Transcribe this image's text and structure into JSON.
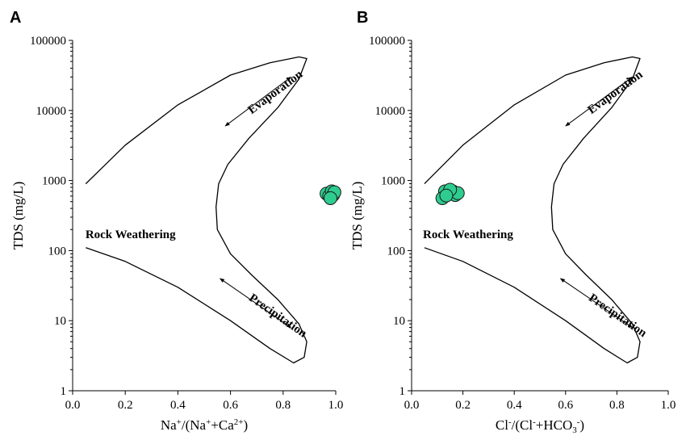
{
  "chart_data": [
    {
      "type": "scatter",
      "panel_label": "A",
      "ylabel": "TDS (mg/L)",
      "xlabel": {
        "parts": [
          {
            "t": "Na"
          },
          {
            "t": "+",
            "s": "sup"
          },
          {
            "t": "/(Na"
          },
          {
            "t": "+",
            "s": "sup"
          },
          {
            "t": "+Ca"
          },
          {
            "t": "2+",
            "s": "sup"
          },
          {
            "t": ")"
          }
        ]
      },
      "xlim": [
        0.0,
        1.0
      ],
      "ylim": [
        1,
        100000
      ],
      "yscale": "log",
      "xticks": [
        "0.0",
        "0.2",
        "0.4",
        "0.6",
        "0.8",
        "1.0"
      ],
      "yticks": [
        "1",
        "10",
        "100",
        "1000",
        "10000",
        "100000"
      ],
      "annotations": [
        "Evaporation",
        "Rock Weathering",
        "Precipitation"
      ],
      "marker_color": "#2ecc8f",
      "points": [
        {
          "x": 0.965,
          "y": 650
        },
        {
          "x": 0.975,
          "y": 600
        },
        {
          "x": 0.985,
          "y": 700
        },
        {
          "x": 0.99,
          "y": 620
        },
        {
          "x": 0.995,
          "y": 680
        },
        {
          "x": 0.98,
          "y": 560
        }
      ]
    },
    {
      "type": "scatter",
      "panel_label": "B",
      "ylabel": "TDS (mg/L)",
      "xlabel": {
        "parts": [
          {
            "t": "Cl"
          },
          {
            "t": "-",
            "s": "sup"
          },
          {
            "t": "/(Cl"
          },
          {
            "t": "-",
            "s": "sup"
          },
          {
            "t": "+HCO"
          },
          {
            "t": "3",
            "s": "sub"
          },
          {
            "t": "-",
            "s": "sup"
          },
          {
            "t": ")"
          }
        ]
      },
      "xlim": [
        0.0,
        1.0
      ],
      "ylim": [
        1,
        100000
      ],
      "yscale": "log",
      "xticks": [
        "0.0",
        "0.2",
        "0.4",
        "0.6",
        "0.8",
        "1.0"
      ],
      "yticks": [
        "1",
        "10",
        "100",
        "1000",
        "10000",
        "100000"
      ],
      "annotations": [
        "Evaporation",
        "Rock Weathering",
        "Precipitation"
      ],
      "marker_color": "#2ecc8f",
      "points": [
        {
          "x": 0.13,
          "y": 700
        },
        {
          "x": 0.145,
          "y": 650
        },
        {
          "x": 0.16,
          "y": 700
        },
        {
          "x": 0.17,
          "y": 620
        },
        {
          "x": 0.18,
          "y": 660
        },
        {
          "x": 0.12,
          "y": 560
        },
        {
          "x": 0.15,
          "y": 740
        },
        {
          "x": 0.135,
          "y": 610
        }
      ]
    }
  ]
}
